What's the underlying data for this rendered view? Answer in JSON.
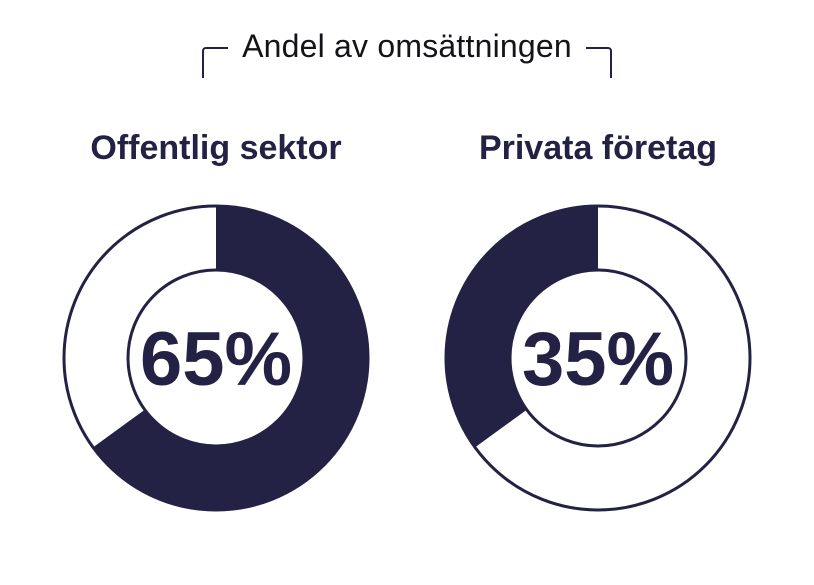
{
  "title": {
    "text": "Andel av omsättningen"
  },
  "colors": {
    "navy": "#232244",
    "title_text": "#131318",
    "background": "#ffffff"
  },
  "chart_data": {
    "type": "pie",
    "variant": "donut-pair",
    "title": "Andel av omsättningen",
    "categories": [
      "Offentlig sektor",
      "Privata företag"
    ],
    "values": [
      65,
      35
    ],
    "unit": "%",
    "legend_position": "none",
    "grid": false,
    "donuts": [
      {
        "heading": "Offentlig sektor",
        "value": 65,
        "center_label": "65%",
        "filled_from_deg": 0,
        "filled_to_deg": 234
      },
      {
        "heading": "Privata företag",
        "value": 35,
        "center_label": "35%",
        "filled_from_deg": 234,
        "filled_to_deg": 360
      }
    ]
  }
}
